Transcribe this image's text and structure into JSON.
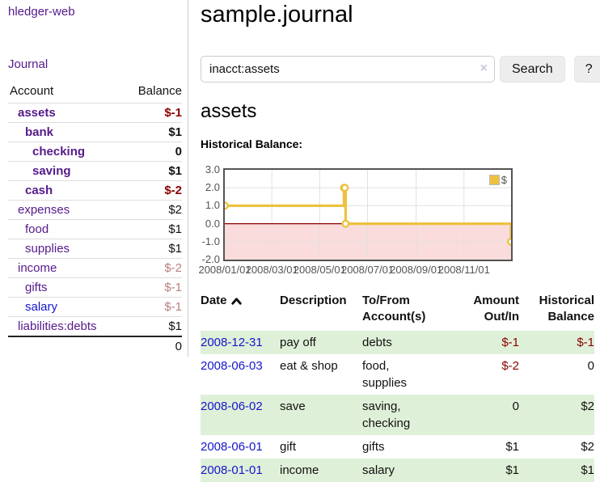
{
  "app": {
    "brand": "hledger-web"
  },
  "sidebar": {
    "journal_link": "Journal",
    "accounts_table": {
      "headers": {
        "account": "Account",
        "balance": "Balance"
      },
      "rows": [
        {
          "name": "assets",
          "balance": "$-1",
          "depth": 1,
          "bold": true,
          "balance_style": "neg"
        },
        {
          "name": "bank",
          "balance": "$1",
          "depth": 2,
          "bold": true,
          "balance_style": "pos"
        },
        {
          "name": "checking",
          "balance": "0",
          "depth": 3,
          "bold": true,
          "balance_style": "pos"
        },
        {
          "name": "saving",
          "balance": "$1",
          "depth": 3,
          "bold": true,
          "balance_style": "pos"
        },
        {
          "name": "cash",
          "balance": "$-2",
          "depth": 2,
          "bold": true,
          "balance_style": "neg"
        },
        {
          "name": "expenses",
          "balance": "$2",
          "depth": 1,
          "bold": false,
          "balance_style": "pos"
        },
        {
          "name": "food",
          "balance": "$1",
          "depth": 2,
          "bold": false,
          "balance_style": "pos"
        },
        {
          "name": "supplies",
          "balance": "$1",
          "depth": 2,
          "bold": false,
          "balance_style": "pos"
        },
        {
          "name": "income",
          "balance": "$-2",
          "depth": 1,
          "bold": false,
          "balance_style": "neg-muted"
        },
        {
          "name": "gifts",
          "balance": "$-1",
          "depth": 2,
          "bold": false,
          "balance_style": "neg-muted"
        },
        {
          "name": "salary",
          "balance": "$-1",
          "depth": 2,
          "bold": false,
          "balance_style": "neg-muted",
          "name_style": "blue"
        },
        {
          "name": "liabilities:debts",
          "balance": "$1",
          "depth": 1,
          "bold": false,
          "balance_style": "pos"
        }
      ],
      "total": "0"
    }
  },
  "main": {
    "title": "sample.journal",
    "search": {
      "value": "inacct:assets",
      "clear_icon": "×",
      "search_label": "Search",
      "help_label": "?"
    },
    "account_heading": "assets",
    "chart_heading": "Historical Balance:"
  },
  "chart_data": {
    "type": "line",
    "subtype": "step",
    "title": "Historical Balance:",
    "xlim": [
      "2008-01-01",
      "2008-12-31"
    ],
    "ylim": [
      -2,
      3
    ],
    "yticks": [
      3.0,
      2.0,
      1.0,
      0.0,
      -1.0,
      -2.0
    ],
    "xticks": [
      {
        "label": "2008/01/01",
        "date": "2008-01-01"
      },
      {
        "label": "2008/03/01",
        "date": "2008-03-01"
      },
      {
        "label": "2008/05/01",
        "date": "2008-05-01"
      },
      {
        "label": "2008/07/01",
        "date": "2008-07-01"
      },
      {
        "label": "2008/09/01",
        "date": "2008-09-01"
      },
      {
        "label": "2008/11/01",
        "date": "2008-11-01"
      }
    ],
    "series": [
      {
        "name": "$",
        "color": "#edc240",
        "points": [
          {
            "x": "2008-01-01",
            "y": 1
          },
          {
            "x": "2008-06-01",
            "y": 2
          },
          {
            "x": "2008-06-02",
            "y": 2
          },
          {
            "x": "2008-06-03",
            "y": 0
          },
          {
            "x": "2008-12-31",
            "y": -1
          }
        ]
      }
    ],
    "legend": {
      "position": "top-right"
    },
    "grid": true,
    "zero_line_color": "#8b0000",
    "negative_region_color": "#fbdcdc",
    "grid_line_color": "#e0e0e0",
    "border_color": "#545454"
  },
  "register": {
    "headers": {
      "date": "Date",
      "description": "Description",
      "accounts": "To/From Account(s)",
      "amount": "Amount Out/In",
      "balance": "Historical Balance"
    },
    "sort": {
      "column": "date",
      "direction": "ascending"
    },
    "rows": [
      {
        "date": "2008-12-31",
        "description": "pay off",
        "accounts": "debts",
        "amount": "$-1",
        "amount_neg": true,
        "balance": "$-1",
        "balance_neg": true
      },
      {
        "date": "2008-06-03",
        "description": "eat & shop",
        "accounts": "food, supplies",
        "amount": "$-2",
        "amount_neg": true,
        "balance": "0",
        "balance_neg": false
      },
      {
        "date": "2008-06-02",
        "description": "save",
        "accounts": "saving, checking",
        "amount": "0",
        "amount_neg": false,
        "balance": "$2",
        "balance_neg": false
      },
      {
        "date": "2008-06-01",
        "description": "gift",
        "accounts": "gifts",
        "amount": "$1",
        "amount_neg": false,
        "balance": "$2",
        "balance_neg": false
      },
      {
        "date": "2008-01-01",
        "description": "income",
        "accounts": "salary",
        "amount": "$1",
        "amount_neg": false,
        "balance": "$1",
        "balance_neg": false
      }
    ]
  },
  "colors": {
    "link_purple": "#551A8B",
    "link_blue": "#1515cd",
    "negative": "#8b0000",
    "negative_muted": "#bb7e7e",
    "row_stripe_green": "#dff0d8",
    "series_gold": "#edc240"
  }
}
